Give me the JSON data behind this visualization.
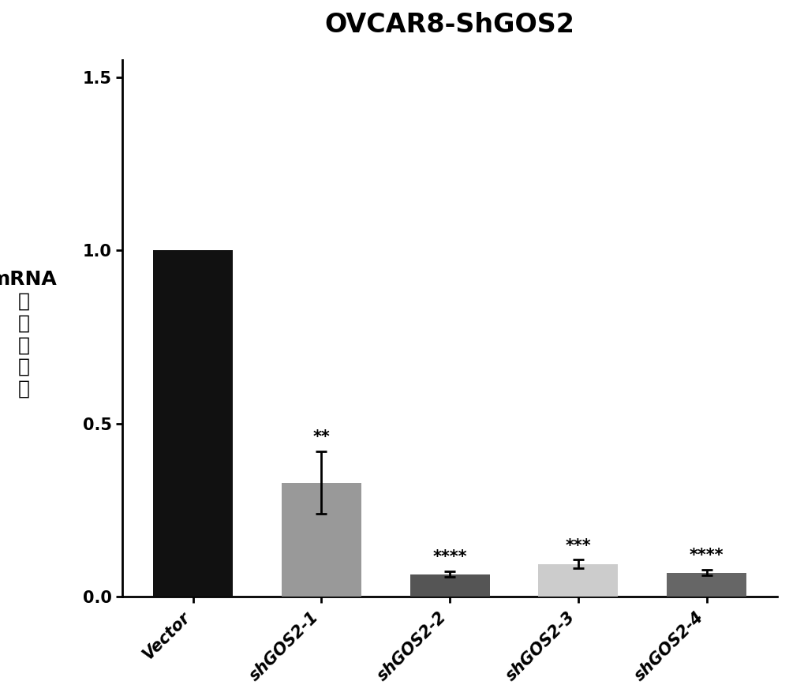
{
  "title": "OVCAR8-ShGOS2",
  "categories": [
    "Vector",
    "shGOS2-1",
    "shGOS2-2",
    "shGOS2-3",
    "shGOS2-4"
  ],
  "values": [
    1.0,
    0.33,
    0.065,
    0.095,
    0.07
  ],
  "errors": [
    0.0,
    0.09,
    0.008,
    0.012,
    0.008
  ],
  "bar_colors": [
    "#111111",
    "#999999",
    "#555555",
    "#cccccc",
    "#666666"
  ],
  "significance": [
    "",
    "**",
    "****",
    "***",
    "****"
  ],
  "ylim": [
    0,
    1.55
  ],
  "yticks": [
    0.0,
    0.5,
    1.0,
    1.5
  ],
  "background_color": "#ffffff",
  "title_fontsize": 24,
  "tick_fontsize": 15,
  "ylabel_fontsize": 18,
  "sig_fontsize": 15,
  "bar_width": 0.62,
  "capsize": 5
}
